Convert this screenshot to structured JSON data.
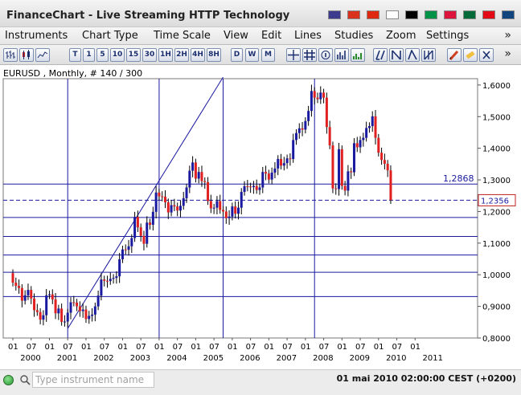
{
  "window": {
    "title": "FinanceChart - Live Streaming HTTP Technology",
    "flags": [
      {
        "name": "us-flag-icon",
        "color": "#3c3b8e"
      },
      {
        "name": "es-flag-icon",
        "color": "#d8321e"
      },
      {
        "name": "cn-flag-icon",
        "color": "#de2910"
      },
      {
        "name": "jp-flag-icon",
        "color": "#ffffff"
      },
      {
        "name": "de-flag-icon",
        "color": "#000000"
      },
      {
        "name": "it-flag-icon",
        "color": "#009246"
      },
      {
        "name": "pl-flag-icon",
        "color": "#dc143c"
      },
      {
        "name": "pt-flag-icon",
        "color": "#046a38"
      },
      {
        "name": "tr-flag-icon",
        "color": "#e30a17"
      },
      {
        "name": "cz-flag-icon",
        "color": "#11457e"
      }
    ]
  },
  "menu": {
    "items": [
      "Instruments",
      "Chart Type",
      "Time Scale",
      "View",
      "Edit",
      "Lines",
      "Studies",
      "Zoom",
      "Settings"
    ],
    "more": "»"
  },
  "toolbar": {
    "timeframes": [
      "T",
      "1",
      "5",
      "10",
      "15",
      "30",
      "1H",
      "2H",
      "4H",
      "8H",
      "D",
      "W",
      "M"
    ],
    "more": "»",
    "icons": [
      "bar-chart-icon",
      "candle-chart-icon",
      "line-chart-icon",
      "crosshair-icon",
      "grid-icon",
      "info-icon",
      "volume-icon",
      "study-icon",
      "trendline-icon",
      "fan-icon",
      "channel-icon",
      "fib-icon",
      "pencil-icon",
      "eraser-icon",
      "delete-icon"
    ]
  },
  "chart": {
    "header": "EURUSD , Monthly, # 140 / 300",
    "price_label": "1,2868",
    "current_label": "1,2356"
  },
  "chart_data": {
    "type": "candlestick",
    "title": "EURUSD , Monthly, # 140 / 300",
    "ylim": [
      0.8,
      1.62
    ],
    "ytick_labels": [
      "1,6000",
      "1,5000",
      "1,4000",
      "1,3000",
      "1,2000",
      "1,1000",
      "1,0000",
      "0,9000",
      "0,8000"
    ],
    "ytick_values": [
      1.6,
      1.5,
      1.4,
      1.3,
      1.2,
      1.1,
      1.0,
      0.9,
      0.8
    ],
    "xmonth_labels": [
      "01",
      "07",
      "01",
      "07",
      "01",
      "07",
      "01",
      "07",
      "01",
      "07",
      "01",
      "07",
      "01",
      "07",
      "01",
      "07",
      "01",
      "07",
      "01",
      "07",
      "01",
      "07",
      "01"
    ],
    "xyear_labels": [
      "2000",
      "2001",
      "2002",
      "2003",
      "2004",
      "2005",
      "2006",
      "2007",
      "2008",
      "2009",
      "2010",
      "2011"
    ],
    "horizontal_lines": [
      1.2868,
      1.2356,
      1.181,
      1.121,
      1.0625,
      1.0077,
      0.931
    ],
    "vertical_line_months": [
      "2001-07",
      "2004-01",
      "2005-10",
      "2008-04"
    ],
    "trendline": {
      "from": [
        "2001-07",
        0.83
      ],
      "to": [
        "2005-10",
        1.625
      ]
    },
    "candles": [
      {
        "m": "2000-01",
        "o": 1.005,
        "c": 0.98,
        "h": 1.028,
        "l": 0.962
      }
    ],
    "series_close": [
      [
        "2000-01",
        0.975
      ],
      [
        "2000-02",
        0.965
      ],
      [
        "2000-03",
        0.958
      ],
      [
        "2000-04",
        0.918
      ],
      [
        "2000-05",
        0.935
      ],
      [
        "2000-06",
        0.952
      ],
      [
        "2000-07",
        0.925
      ],
      [
        "2000-08",
        0.888
      ],
      [
        "2000-09",
        0.882
      ],
      [
        "2000-10",
        0.858
      ],
      [
        "2000-11",
        0.872
      ],
      [
        "2000-12",
        0.935
      ],
      [
        "2001-01",
        0.938
      ],
      [
        "2001-02",
        0.922
      ],
      [
        "2001-03",
        0.878
      ],
      [
        "2001-04",
        0.893
      ],
      [
        "2001-05",
        0.851
      ],
      [
        "2001-06",
        0.852
      ],
      [
        "2001-07",
        0.88
      ],
      [
        "2001-08",
        0.913
      ],
      [
        "2001-09",
        0.912
      ],
      [
        "2001-10",
        0.9
      ],
      [
        "2001-11",
        0.885
      ],
      [
        "2001-12",
        0.89
      ],
      [
        "2002-01",
        0.86
      ],
      [
        "2002-02",
        0.87
      ],
      [
        "2002-03",
        0.874
      ],
      [
        "2002-04",
        0.9
      ],
      [
        "2002-05",
        0.934
      ],
      [
        "2002-06",
        0.985
      ],
      [
        "2002-07",
        0.981
      ],
      [
        "2002-08",
        0.98
      ],
      [
        "2002-09",
        0.987
      ],
      [
        "2002-10",
        0.99
      ],
      [
        "2002-11",
        0.995
      ],
      [
        "2002-12",
        1.049
      ],
      [
        "2003-01",
        1.08
      ],
      [
        "2003-02",
        1.079
      ],
      [
        "2003-03",
        1.09
      ],
      [
        "2003-04",
        1.116
      ],
      [
        "2003-05",
        1.183
      ],
      [
        "2003-06",
        1.15
      ],
      [
        "2003-07",
        1.123
      ],
      [
        "2003-08",
        1.098
      ],
      [
        "2003-09",
        1.165
      ],
      [
        "2003-10",
        1.158
      ],
      [
        "2003-11",
        1.199
      ],
      [
        "2003-12",
        1.26
      ],
      [
        "2004-01",
        1.248
      ],
      [
        "2004-02",
        1.247
      ],
      [
        "2004-03",
        1.229
      ],
      [
        "2004-04",
        1.197
      ],
      [
        "2004-05",
        1.22
      ],
      [
        "2004-06",
        1.216
      ],
      [
        "2004-07",
        1.203
      ],
      [
        "2004-08",
        1.218
      ],
      [
        "2004-09",
        1.242
      ],
      [
        "2004-10",
        1.276
      ],
      [
        "2004-11",
        1.329
      ],
      [
        "2004-12",
        1.355
      ],
      [
        "2005-01",
        1.304
      ],
      [
        "2005-02",
        1.325
      ],
      [
        "2005-03",
        1.296
      ],
      [
        "2005-04",
        1.293
      ],
      [
        "2005-05",
        1.233
      ],
      [
        "2005-06",
        1.21
      ],
      [
        "2005-07",
        1.212
      ],
      [
        "2005-08",
        1.233
      ],
      [
        "2005-09",
        1.205
      ],
      [
        "2005-10",
        1.2
      ],
      [
        "2005-11",
        1.179
      ],
      [
        "2005-12",
        1.184
      ],
      [
        "2006-01",
        1.216
      ],
      [
        "2006-02",
        1.193
      ],
      [
        "2006-03",
        1.212
      ],
      [
        "2006-04",
        1.262
      ],
      [
        "2006-05",
        1.28
      ],
      [
        "2006-06",
        1.279
      ],
      [
        "2006-07",
        1.277
      ],
      [
        "2006-08",
        1.281
      ],
      [
        "2006-09",
        1.268
      ],
      [
        "2006-10",
        1.276
      ],
      [
        "2006-11",
        1.325
      ],
      [
        "2006-12",
        1.32
      ],
      [
        "2007-01",
        1.301
      ],
      [
        "2007-02",
        1.323
      ],
      [
        "2007-03",
        1.336
      ],
      [
        "2007-04",
        1.366
      ],
      [
        "2007-05",
        1.345
      ],
      [
        "2007-06",
        1.353
      ],
      [
        "2007-07",
        1.368
      ],
      [
        "2007-08",
        1.366
      ],
      [
        "2007-09",
        1.426
      ],
      [
        "2007-10",
        1.448
      ],
      [
        "2007-11",
        1.463
      ],
      [
        "2007-12",
        1.459
      ],
      [
        "2008-01",
        1.486
      ],
      [
        "2008-02",
        1.518
      ],
      [
        "2008-03",
        1.581
      ],
      [
        "2008-04",
        1.56
      ],
      [
        "2008-05",
        1.555
      ],
      [
        "2008-06",
        1.576
      ],
      [
        "2008-07",
        1.56
      ],
      [
        "2008-08",
        1.467
      ],
      [
        "2008-09",
        1.409
      ],
      [
        "2008-10",
        1.273
      ],
      [
        "2008-11",
        1.271
      ],
      [
        "2008-12",
        1.397
      ],
      [
        "2009-01",
        1.281
      ],
      [
        "2009-02",
        1.266
      ],
      [
        "2009-03",
        1.327
      ],
      [
        "2009-04",
        1.324
      ],
      [
        "2009-05",
        1.416
      ],
      [
        "2009-06",
        1.403
      ],
      [
        "2009-07",
        1.426
      ],
      [
        "2009-08",
        1.433
      ],
      [
        "2009-09",
        1.464
      ],
      [
        "2009-10",
        1.47
      ],
      [
        "2009-11",
        1.501
      ],
      [
        "2009-12",
        1.433
      ],
      [
        "2010-01",
        1.386
      ],
      [
        "2010-02",
        1.363
      ],
      [
        "2010-03",
        1.351
      ],
      [
        "2010-04",
        1.33
      ],
      [
        "2010-05",
        1.236
      ]
    ]
  },
  "status": {
    "search_placeholder": "Type instrument name",
    "time": "01 mai 2010 02:00:00  CEST (+0200)"
  }
}
